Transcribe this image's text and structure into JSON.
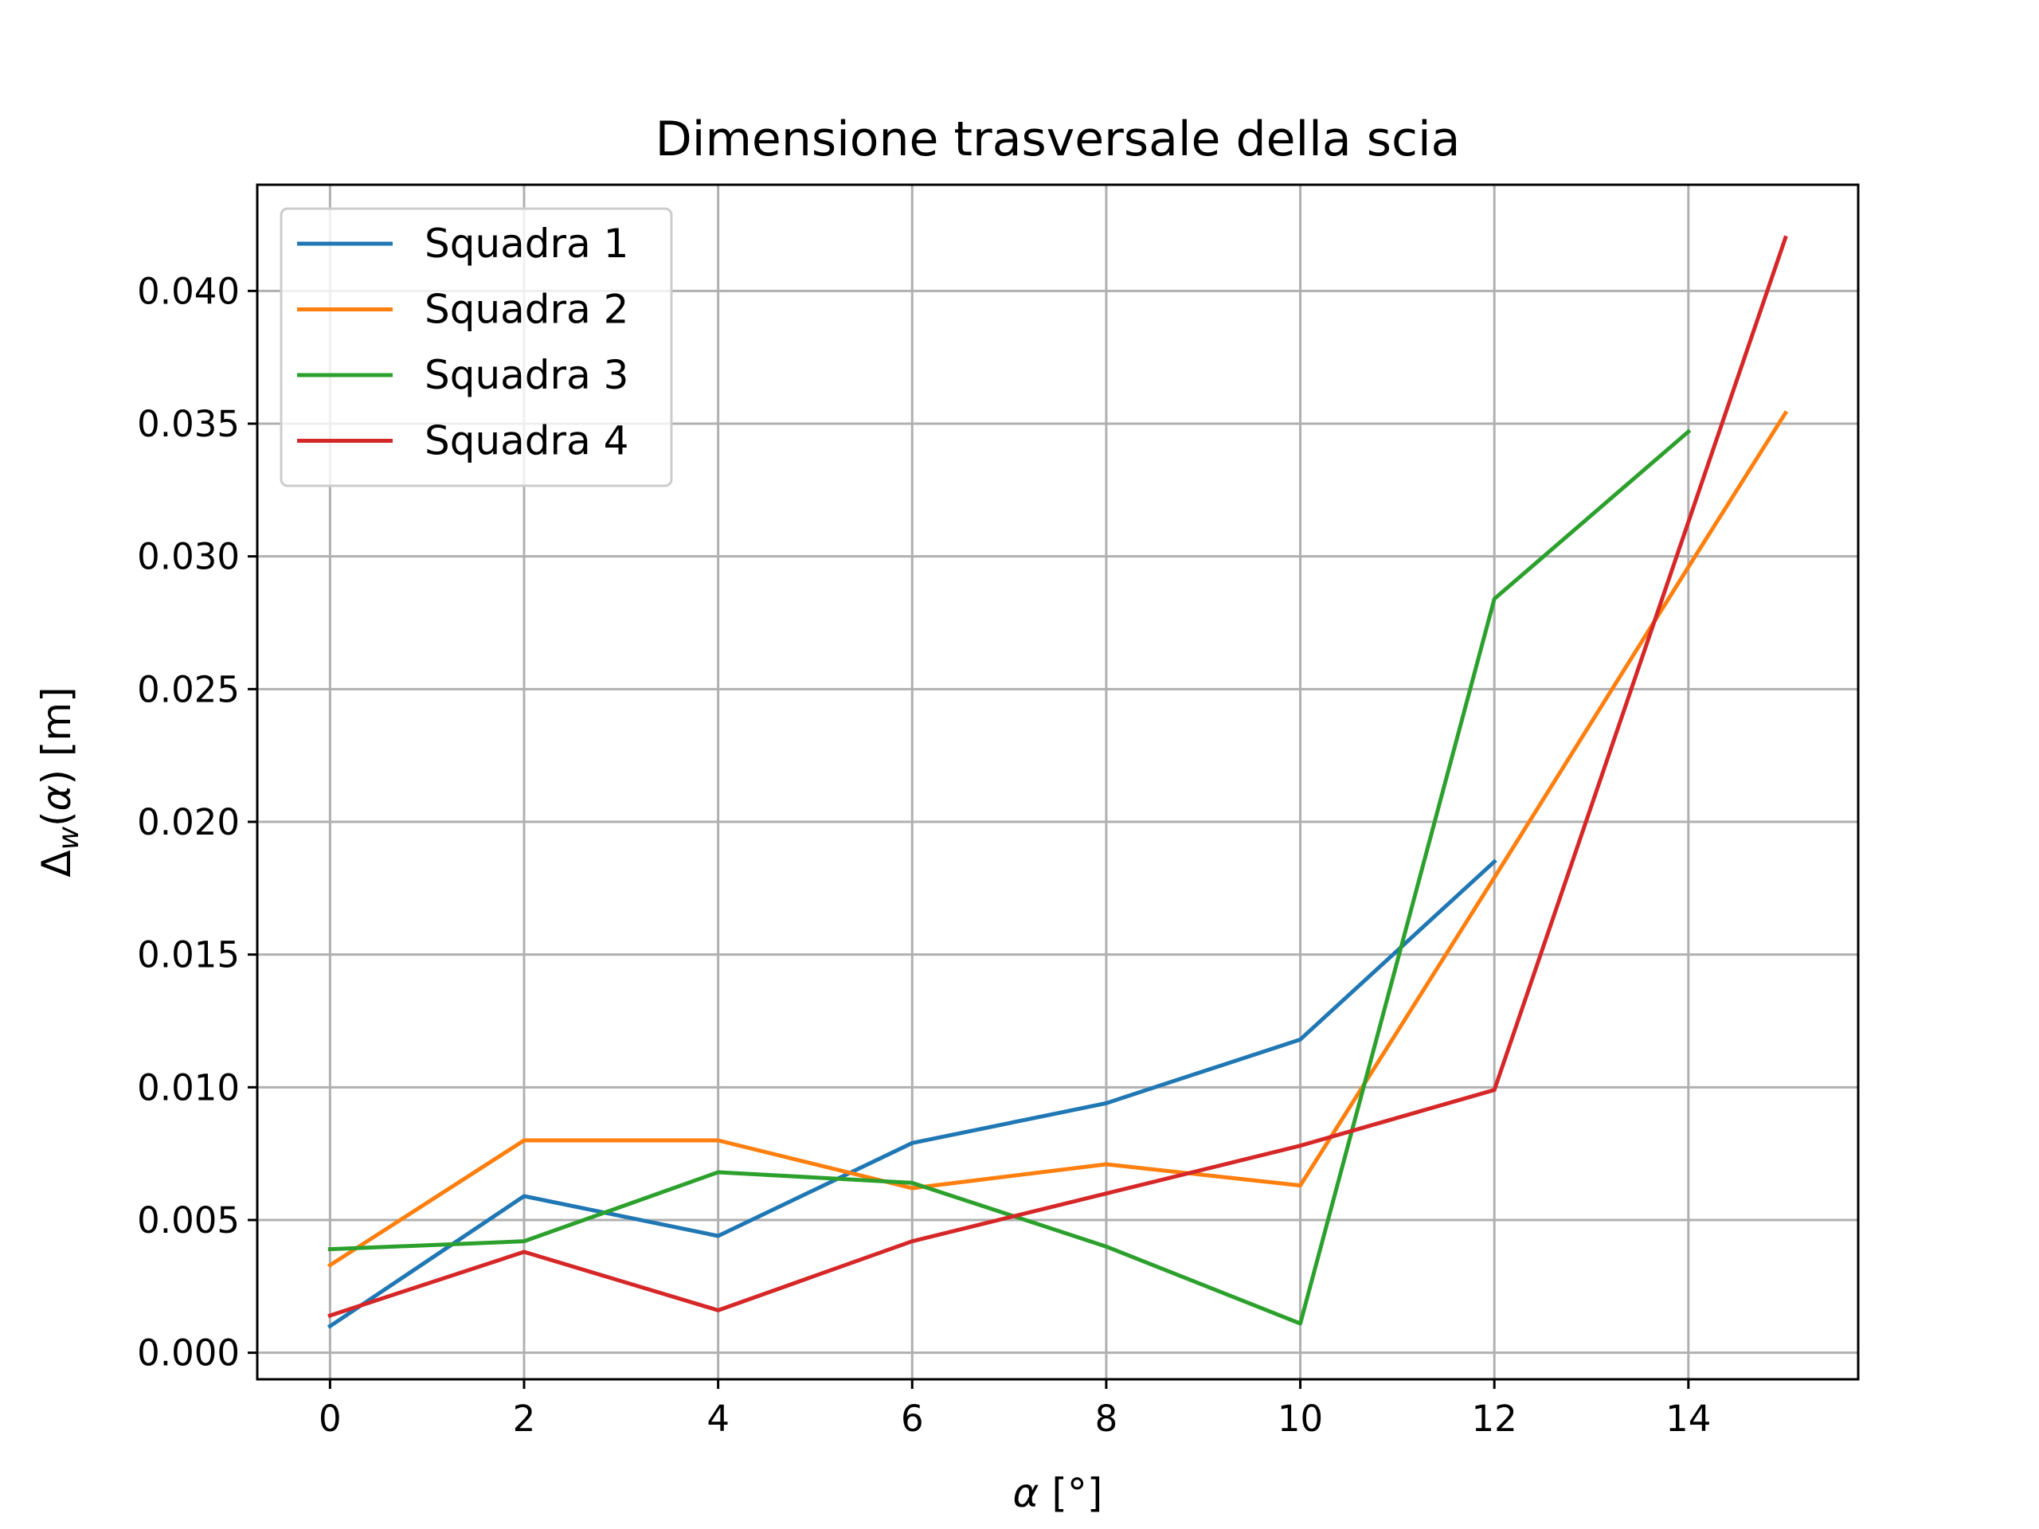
{
  "chart_data": {
    "type": "line",
    "title": "Dimensione trasversale della scia",
    "xlabel": "α [°]",
    "ylabel": "Δw(α) [m]",
    "xlim": [
      -0.75,
      15.75
    ],
    "ylim": [
      -0.001,
      0.044
    ],
    "xticks": [
      0,
      2,
      4,
      6,
      8,
      10,
      12,
      14
    ],
    "xtick_labels": [
      "0",
      "2",
      "4",
      "6",
      "8",
      "10",
      "12",
      "14"
    ],
    "yticks": [
      0,
      0.005,
      0.01,
      0.015,
      0.02,
      0.025,
      0.03,
      0.035,
      0.04
    ],
    "ytick_labels": [
      "0.000",
      "0.005",
      "0.010",
      "0.015",
      "0.020",
      "0.025",
      "0.030",
      "0.035",
      "0.040"
    ],
    "grid": true,
    "legend_position": "top-left",
    "series": [
      {
        "name": "Squadra 1",
        "color": "#1f77b4",
        "x": [
          0,
          2,
          4,
          6,
          8,
          10,
          12
        ],
        "y": [
          0.001,
          0.0059,
          0.0044,
          0.0079,
          0.0094,
          0.0118,
          0.0185
        ]
      },
      {
        "name": "Squadra 2",
        "color": "#ff7f0e",
        "x": [
          0,
          2,
          4,
          6,
          8,
          10,
          12,
          14,
          15
        ],
        "y": [
          0.0033,
          0.008,
          0.008,
          0.0062,
          0.0071,
          0.0063,
          0.0179,
          0.0296,
          0.0354
        ]
      },
      {
        "name": "Squadra 3",
        "color": "#2ca02c",
        "x": [
          0,
          2,
          4,
          6,
          8,
          10,
          12,
          14
        ],
        "y": [
          0.0039,
          0.0042,
          0.0068,
          0.0064,
          0.004,
          0.0011,
          0.0284,
          0.0347
        ]
      },
      {
        "name": "Squadra 4",
        "color": "#d62728",
        "x": [
          0,
          2,
          4,
          6,
          8,
          10,
          12,
          15
        ],
        "y": [
          0.0014,
          0.0038,
          0.0016,
          0.0042,
          0.006,
          0.0078,
          0.0099,
          0.042
        ]
      }
    ]
  }
}
